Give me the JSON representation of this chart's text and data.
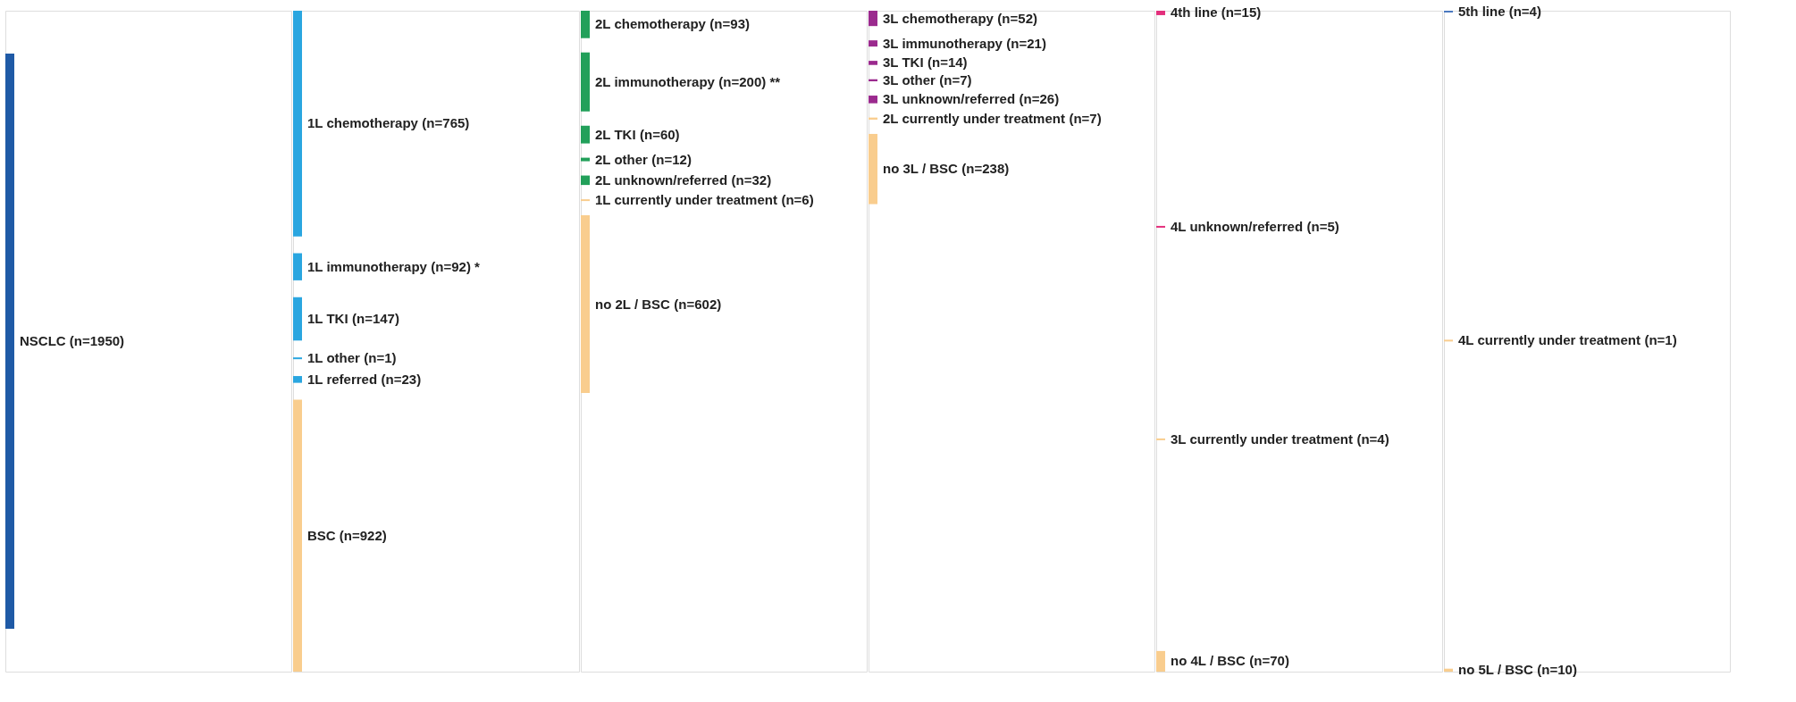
{
  "chart_data": [
    {
      "type": "other",
      "categories": [
        "NSCLC"
      ],
      "values": [
        1950
      ],
      "value_labels": [
        "(n=1950)"
      ],
      "colors": [
        "#1f5aa6"
      ]
    },
    {
      "type": "other",
      "categories": [
        "1L chemotherapy",
        "1L immunotherapy",
        "1L TKI",
        "1L other",
        "1L referred",
        "BSC"
      ],
      "values": [
        765,
        92,
        147,
        1,
        23,
        922
      ],
      "value_labels": [
        "(n=765)",
        "(n=92) *",
        "(n=147)",
        "(n=1)",
        "(n=23)",
        "(n=922)"
      ],
      "colors": [
        "#2aa6e0",
        "#2aa6e0",
        "#2aa6e0",
        "#2aa6e0",
        "#2aa6e0",
        "#f9cd8e"
      ]
    },
    {
      "type": "other",
      "categories": [
        "2L chemotherapy",
        "2L immunotherapy",
        "2L TKI",
        "2L other",
        "2L unknown/referred",
        "1L currently under treatment",
        "no 2L / BSC"
      ],
      "values": [
        93,
        200,
        60,
        12,
        32,
        6,
        602
      ],
      "value_labels": [
        "(n=93)",
        "(n=200) **",
        "(n=60)",
        "(n=12)",
        "(n=32)",
        "(n=6)",
        "(n=602)"
      ],
      "colors": [
        "#22a05a",
        "#22a05a",
        "#22a05a",
        "#22a05a",
        "#22a05a",
        "#f9cd8e",
        "#f9cd8e"
      ]
    },
    {
      "type": "other",
      "categories": [
        "3L chemotherapy",
        "3L immunotherapy",
        "3L TKI",
        "3L other",
        "3L unknown/referred",
        "2L currently under treatment",
        "no 3L / BSC"
      ],
      "values": [
        52,
        21,
        14,
        7,
        26,
        7,
        238
      ],
      "value_labels": [
        "(n=52)",
        "(n=21)",
        "(n=14)",
        "(n=7)",
        "(n=26)",
        "(n=7)",
        "(n=238)"
      ],
      "colors": [
        "#9b2a8e",
        "#9b2a8e",
        "#9b2a8e",
        "#9b2a8e",
        "#9b2a8e",
        "#f9cd8e",
        "#f9cd8e"
      ]
    },
    {
      "type": "other",
      "categories": [
        "4th line",
        "4L unknown/referred",
        "3L currently under treatment",
        "no 4L / BSC"
      ],
      "values": [
        15,
        5,
        4,
        70
      ],
      "value_labels": [
        "(n=15)",
        "(n=5)",
        "(n=4)",
        "(n=70)"
      ],
      "colors": [
        "#e3307c",
        "#e3307c",
        "#f9cd8e",
        "#f9cd8e"
      ]
    },
    {
      "type": "other",
      "categories": [
        "5th line",
        "4L currently under treatment",
        "no 5L / BSC"
      ],
      "values": [
        4,
        1,
        10
      ],
      "value_labels": [
        "(n=4)",
        "(n=1)",
        "(n=10)"
      ],
      "colors": [
        "#4a78c0",
        "#f9cd8e",
        "#f9cd8e"
      ]
    }
  ]
}
